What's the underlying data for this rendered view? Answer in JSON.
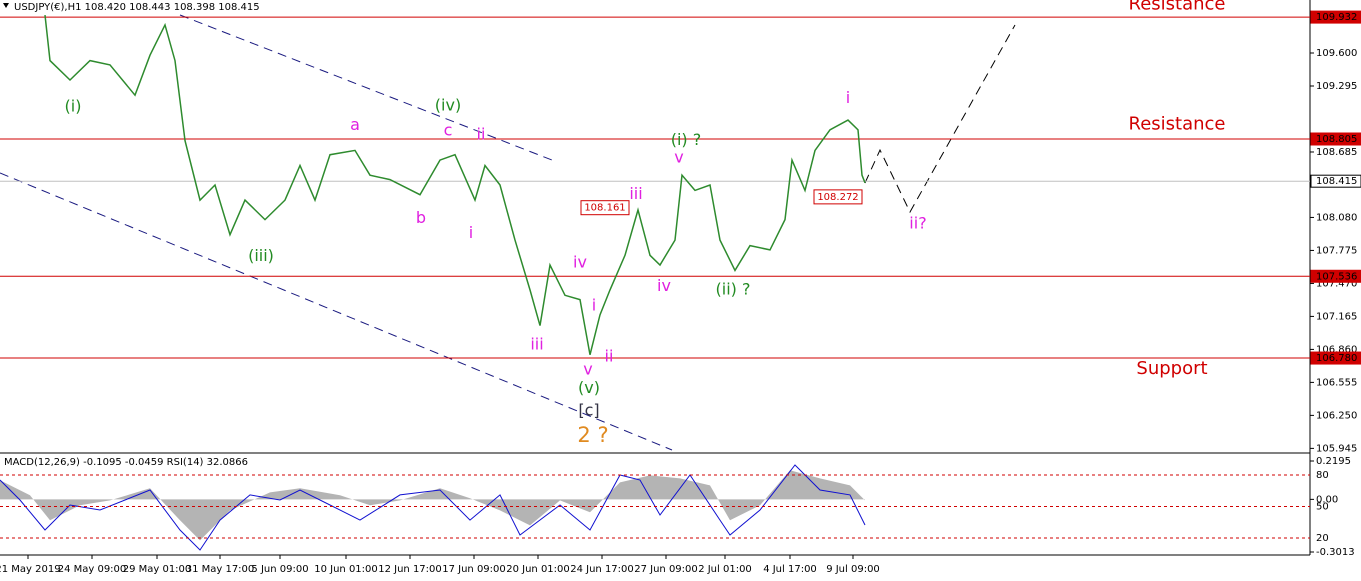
{
  "chart_data": [
    {
      "type": "line",
      "title": "USDJPY(€),H1  108.420 108.443 108.398 108.415",
      "color": "#2e8b2e",
      "xlim": [
        0,
        131
      ],
      "ylim": [
        105.93,
        110.09
      ],
      "series": [
        {
          "name": "USDJPY",
          "color": "#2e8b2e",
          "x": [
            4.5,
            5,
            7,
            9,
            11,
            13.5,
            15,
            16.5,
            17.5,
            18.5,
            20,
            21.5,
            23,
            24.5,
            26.5,
            28.5,
            30,
            31.5,
            33,
            35.5,
            37,
            39,
            42,
            44,
            45.5,
            47.5,
            48.5,
            50,
            51.5,
            53,
            54,
            55,
            56.5,
            58,
            59,
            60,
            61,
            62.5,
            63.8,
            65,
            66,
            67.5,
            68.2,
            69.5,
            71,
            72,
            73.5,
            75,
            77,
            78.5,
            79.2,
            80.5,
            81.5,
            83,
            84.8,
            85.8,
            86.2,
            86.5
          ],
          "values": [
            109.95,
            109.53,
            109.35,
            109.53,
            109.49,
            109.21,
            109.58,
            109.86,
            109.53,
            108.79,
            108.24,
            108.38,
            107.92,
            108.24,
            108.06,
            108.24,
            108.56,
            108.24,
            108.66,
            108.7,
            108.47,
            108.43,
            108.29,
            108.61,
            108.66,
            108.24,
            108.56,
            108.38,
            107.87,
            107.41,
            107.08,
            107.64,
            107.36,
            107.32,
            106.81,
            107.18,
            107.41,
            107.73,
            108.15,
            107.73,
            107.64,
            107.87,
            108.47,
            108.33,
            108.38,
            107.87,
            107.59,
            107.82,
            107.78,
            108.06,
            108.61,
            108.33,
            108.7,
            108.89,
            108.98,
            108.89,
            108.47,
            108.4
          ]
        }
      ],
      "yticks": [
        {
          "value": 109.6,
          "label": "109.600"
        },
        {
          "value": 109.295,
          "label": "109.295"
        },
        {
          "value": 108.685,
          "label": "108.685"
        },
        {
          "value": 108.08,
          "label": "108.080"
        },
        {
          "value": 107.775,
          "label": "107.775"
        },
        {
          "value": 107.47,
          "label": "107.470"
        },
        {
          "value": 107.165,
          "label": "107.165"
        },
        {
          "value": 106.86,
          "label": "106.860"
        },
        {
          "value": 106.555,
          "label": "106.555"
        },
        {
          "value": 106.25,
          "label": "106.250"
        },
        {
          "value": 105.945,
          "label": "105.945"
        }
      ],
      "xticks": [
        {
          "value": 2.8,
          "label": "21 May 2019"
        },
        {
          "value": 9.2,
          "label": "24 May 09:00"
        },
        {
          "value": 15.7,
          "label": "29 May 01:00"
        },
        {
          "value": 22,
          "label": "31 May 17:00"
        },
        {
          "value": 28,
          "label": "5 Jun 09:00"
        },
        {
          "value": 34.6,
          "label": "10 Jun 01:00"
        },
        {
          "value": 41,
          "label": "12 Jun 17:00"
        },
        {
          "value": 47.4,
          "label": "17 Jun 09:00"
        },
        {
          "value": 53.8,
          "label": "20 Jun 01:00"
        },
        {
          "value": 60.2,
          "label": "24 Jun 17:00"
        },
        {
          "value": 66.6,
          "label": "27 Jun 09:00"
        },
        {
          "value": 72.5,
          "label": "2 Jul 01:00"
        },
        {
          "value": 79,
          "label": "4 Jul 17:00"
        },
        {
          "value": 85.3,
          "label": "9 Jul 09:00"
        }
      ],
      "levels": [
        {
          "value": 109.932,
          "label": "109.932",
          "color": "#d00000"
        },
        {
          "value": 108.805,
          "label": "108.805",
          "color": "#d00000"
        },
        {
          "value": 108.415,
          "label": "108.415",
          "color": "#c0c0c0"
        },
        {
          "value": 107.536,
          "label": "107.536",
          "color": "#d00000"
        },
        {
          "value": 106.78,
          "label": "106.780",
          "color": "#d00000"
        }
      ],
      "annotations": [
        {
          "text": "(i)",
          "color": "#228b22",
          "x": 7.3,
          "y": 109.1
        },
        {
          "text": "(iii)",
          "color": "#228b22",
          "x": 26.1,
          "y": 107.72
        },
        {
          "text": "(iv)",
          "color": "#228b22",
          "x": 44.8,
          "y": 109.11
        },
        {
          "text": "(v)",
          "color": "#228b22",
          "x": 58.9,
          "y": 106.5
        },
        {
          "text": "(i) ?",
          "color": "#228b22",
          "x": 68.6,
          "y": 108.79
        },
        {
          "text": "(ii) ?",
          "color": "#228b22",
          "x": 73.3,
          "y": 107.41
        },
        {
          "text": "a",
          "color": "#e020e0",
          "x": 35.5,
          "y": 108.93
        },
        {
          "text": "b",
          "color": "#e020e0",
          "x": 42.1,
          "y": 108.07
        },
        {
          "text": "c",
          "color": "#e020e0",
          "x": 44.8,
          "y": 108.88
        },
        {
          "text": "ii",
          "color": "#e020e0",
          "x": 48.1,
          "y": 108.84
        },
        {
          "text": "i",
          "color": "#e020e0",
          "x": 47.1,
          "y": 107.93
        },
        {
          "text": "iii",
          "color": "#e020e0",
          "x": 53.7,
          "y": 106.9
        },
        {
          "text": "iv",
          "color": "#e020e0",
          "x": 58,
          "y": 107.66
        },
        {
          "text": "i",
          "color": "#e020e0",
          "x": 59.4,
          "y": 107.26
        },
        {
          "text": "ii",
          "color": "#e020e0",
          "x": 60.9,
          "y": 106.79
        },
        {
          "text": "v",
          "color": "#e020e0",
          "x": 58.8,
          "y": 106.67
        },
        {
          "text": "iii",
          "color": "#e020e0",
          "x": 63.6,
          "y": 108.29
        },
        {
          "text": "v",
          "color": "#e020e0",
          "x": 67.9,
          "y": 108.63
        },
        {
          "text": "iv",
          "color": "#e020e0",
          "x": 66.4,
          "y": 107.44
        },
        {
          "text": "i",
          "color": "#e020e0",
          "x": 84.8,
          "y": 109.18
        },
        {
          "text": "ii?",
          "color": "#e020e0",
          "x": 91.8,
          "y": 108.02
        },
        {
          "text": "[c]",
          "color": "#333344",
          "x": 58.9,
          "y": 106.29
        },
        {
          "text": "2 ?",
          "color": "#e08a20",
          "x": 59.3,
          "y": 106.06
        },
        {
          "text": "Resistance",
          "color": "#d00000",
          "x": 117.7,
          "y": 110.05
        },
        {
          "text": "Resistance",
          "color": "#d00000",
          "x": 117.7,
          "y": 108.94
        },
        {
          "text": "Support",
          "color": "#d00000",
          "x": 117.2,
          "y": 106.68
        }
      ],
      "boxes": [
        {
          "text": "108.161",
          "x": 60.5,
          "y": 108.17
        },
        {
          "text": "108.272",
          "x": 83.8,
          "y": 108.27
        }
      ]
    },
    {
      "type": "line",
      "title": "MACD(12,26,9) -0.1095 -0.0459  RSI(14) 32.0866",
      "xlim": [
        0,
        131
      ],
      "ylim": [
        6.7,
        93.3
      ],
      "y2lim": [
        -0.3013,
        0.2195
      ],
      "yticks": [
        80,
        50,
        20
      ],
      "y2ticks": [
        0.2195,
        {
          "value": 0,
          "label": "0.00"
        },
        -0.3013
      ],
      "series": [
        {
          "name": "MACD",
          "color": "#b4b4b4",
          "axis": "y2",
          "x": [
            0,
            3,
            5,
            8,
            11,
            15,
            18,
            20,
            23,
            27,
            30,
            34,
            37,
            40,
            44,
            47,
            50,
            53,
            56,
            59,
            62,
            65,
            68,
            71,
            73,
            76,
            79,
            82,
            85,
            86.5
          ],
          "values": [
            0.109,
            0.023,
            -0.12,
            -0.034,
            -0.006,
            0.063,
            -0.12,
            -0.235,
            -0.063,
            0.04,
            0.063,
            0.023,
            -0.034,
            -0.006,
            0.063,
            0.006,
            -0.063,
            -0.149,
            -0.006,
            -0.074,
            0.097,
            0.137,
            0.12,
            0.08,
            -0.12,
            -0.034,
            0.166,
            0.12,
            0.08,
            -0.006
          ]
        },
        {
          "name": "RSI",
          "color": "#1010d0",
          "x": [
            0,
            2,
            4.5,
            7,
            10,
            15,
            18,
            20,
            22,
            25,
            28,
            30,
            33,
            36,
            40,
            44,
            47,
            50,
            52,
            56,
            59,
            62,
            64,
            66,
            69,
            72,
            73,
            76,
            79.5,
            82,
            85,
            86.5
          ],
          "values": [
            75.2,
            56.2,
            27.6,
            51.4,
            46.7,
            65.7,
            27.6,
            8.6,
            37.1,
            61,
            56.2,
            65.7,
            51.4,
            37.1,
            61,
            65.7,
            37.1,
            61,
            22.9,
            51.4,
            27.6,
            80,
            75.2,
            41.9,
            80,
            37.1,
            22.9,
            46.7,
            89.5,
            65.7,
            61,
            32.4
          ]
        }
      ]
    }
  ]
}
